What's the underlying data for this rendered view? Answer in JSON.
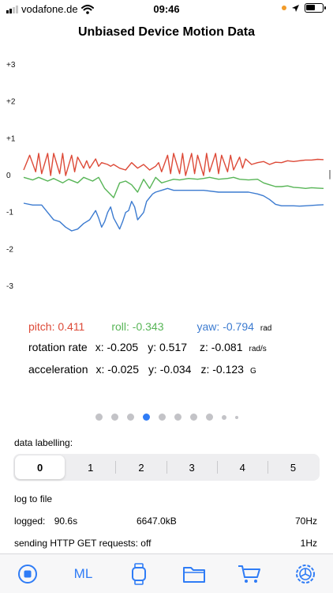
{
  "status": {
    "carrier": "vodafone.de",
    "time": "09:46"
  },
  "title": "Unbiased Device Motion Data",
  "chart_data": {
    "type": "line",
    "y_ticks": [
      "+3",
      "+2",
      "+1",
      "0",
      "-1",
      "-2",
      "-3"
    ],
    "ylim": [
      -3,
      3
    ],
    "x_range": [
      0,
      100
    ],
    "series": [
      {
        "name": "pitch",
        "color": "#dd4a38",
        "x": [
          0,
          2,
          4,
          5,
          6,
          8,
          9,
          10,
          12,
          13,
          14,
          16,
          17,
          18,
          20,
          21,
          22,
          24,
          25,
          26,
          28,
          29,
          30,
          32,
          34,
          36,
          38,
          40,
          42,
          44,
          45,
          46,
          48,
          49,
          50,
          52,
          53,
          54,
          56,
          57,
          58,
          60,
          61,
          62,
          64,
          65,
          66,
          68,
          69,
          70,
          72,
          73,
          74,
          76,
          78,
          80,
          82,
          84,
          86,
          88,
          90,
          92,
          94,
          96,
          98,
          100
        ],
        "values": [
          0.15,
          0.55,
          0.1,
          0.6,
          0.05,
          0.6,
          0.0,
          0.6,
          0.05,
          0.6,
          0.0,
          0.55,
          0.1,
          0.5,
          0.2,
          0.4,
          0.2,
          0.45,
          0.25,
          0.35,
          0.3,
          0.25,
          0.3,
          0.2,
          0.15,
          0.35,
          0.2,
          0.3,
          0.15,
          0.25,
          0.35,
          0.1,
          0.55,
          0.05,
          0.6,
          0.05,
          0.6,
          0.0,
          0.6,
          0.05,
          0.55,
          0.0,
          0.6,
          0.1,
          0.6,
          0.05,
          0.55,
          0.1,
          0.55,
          0.15,
          0.5,
          0.2,
          0.45,
          0.3,
          0.35,
          0.38,
          0.3,
          0.36,
          0.35,
          0.4,
          0.38,
          0.4,
          0.42,
          0.42,
          0.44,
          0.43
        ]
      },
      {
        "name": "roll",
        "color": "#58b557",
        "x": [
          0,
          3,
          5,
          8,
          10,
          13,
          15,
          18,
          20,
          23,
          25,
          27,
          30,
          32,
          34,
          36,
          38,
          40,
          42,
          44,
          46,
          48,
          50,
          52,
          55,
          58,
          60,
          62,
          65,
          68,
          70,
          72,
          75,
          78,
          80,
          82,
          84,
          86,
          88,
          90,
          92,
          94,
          96,
          98,
          100
        ],
        "values": [
          -0.05,
          -0.12,
          -0.05,
          -0.15,
          -0.08,
          -0.2,
          -0.1,
          -0.2,
          -0.05,
          -0.15,
          -0.05,
          -0.35,
          -0.6,
          -0.2,
          -0.15,
          -0.25,
          -0.45,
          -0.1,
          -0.35,
          -0.05,
          -0.2,
          -0.15,
          -0.1,
          -0.12,
          -0.08,
          -0.1,
          -0.08,
          -0.05,
          -0.1,
          -0.08,
          -0.05,
          -0.1,
          -0.12,
          -0.1,
          -0.2,
          -0.25,
          -0.3,
          -0.3,
          -0.28,
          -0.32,
          -0.33,
          -0.35,
          -0.33,
          -0.34,
          -0.35
        ]
      },
      {
        "name": "yaw",
        "color": "#3c7bd0",
        "x": [
          0,
          3,
          6,
          8,
          10,
          12,
          14,
          16,
          18,
          20,
          22,
          24,
          25,
          26,
          27,
          28,
          29,
          30,
          32,
          33,
          34,
          35,
          36,
          37,
          38,
          40,
          41,
          42,
          43,
          44,
          46,
          48,
          50,
          55,
          60,
          65,
          70,
          75,
          78,
          80,
          82,
          84,
          86,
          88,
          90,
          92,
          94,
          96,
          98,
          100
        ],
        "values": [
          -0.75,
          -0.8,
          -0.8,
          -1.0,
          -1.2,
          -1.25,
          -1.4,
          -1.5,
          -1.45,
          -1.3,
          -1.2,
          -0.95,
          -1.15,
          -1.4,
          -1.25,
          -1.0,
          -0.85,
          -1.15,
          -1.45,
          -1.25,
          -1.0,
          -0.95,
          -0.7,
          -0.85,
          -1.2,
          -1.0,
          -0.7,
          -0.6,
          -0.5,
          -0.45,
          -0.4,
          -0.35,
          -0.4,
          -0.4,
          -0.4,
          -0.45,
          -0.45,
          -0.45,
          -0.5,
          -0.55,
          -0.65,
          -0.78,
          -0.82,
          -0.82,
          -0.82,
          -0.83,
          -0.82,
          -0.81,
          -0.8,
          -0.79
        ]
      }
    ]
  },
  "readout": {
    "pitch": "pitch: 0.411",
    "roll": "roll: -0.343",
    "yaw": "yaw: -0.794",
    "angle_unit": "rad",
    "rotation_label": "rotation rate",
    "rot_x": "x: -0.205",
    "rot_y": "y: 0.517",
    "rot_z": "z: -0.081",
    "rot_unit": "rad/s",
    "accel_label": "acceleration",
    "acc_x": "x: -0.025",
    "acc_y": "y: -0.034",
    "acc_z": "z: -0.123",
    "acc_unit": "G"
  },
  "pager": {
    "count": 10,
    "active_index": 3
  },
  "labelling": {
    "title": "data labelling",
    "title_suffix": ":",
    "options": [
      "0",
      "1",
      "2",
      "3",
      "4",
      "5"
    ],
    "selected": "0"
  },
  "log": {
    "title": "log to file",
    "logged_label": "logged:",
    "logged_time": "90.6s",
    "size": "6647.0kB",
    "rate": "70Hz",
    "http_label": "sending HTTP GET requests: off",
    "http_rate": "1Hz"
  },
  "tabs": [
    {
      "name": "record",
      "icon": "stop-circle-icon"
    },
    {
      "name": "ml",
      "label": "ML"
    },
    {
      "name": "watch",
      "icon": "watch-icon"
    },
    {
      "name": "files",
      "icon": "folder-icon"
    },
    {
      "name": "cart",
      "icon": "cart-icon"
    },
    {
      "name": "settings",
      "icon": "settings-gear-icon"
    }
  ],
  "colors": {
    "pitch": "#dd4a38",
    "roll": "#58b557",
    "yaw": "#3c7bd0",
    "accent": "#2f7cf6"
  }
}
